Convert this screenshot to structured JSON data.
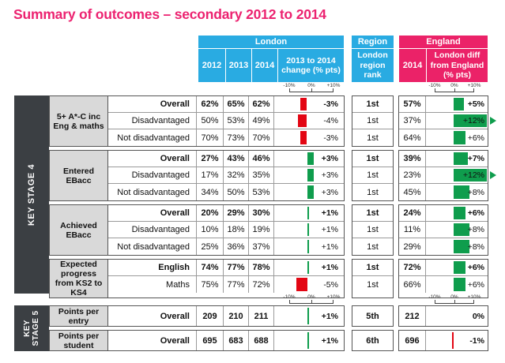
{
  "title": "Summary of outcomes – secondary 2012 to 2014",
  "colors": {
    "header_blue": "#29ABE2",
    "header_pink": "#EB2268",
    "increase_green": "#0F9D4D",
    "decrease_red": "#E30613",
    "sidebar_dark": "#3B3F43",
    "category_bg": "#D9D9D9"
  },
  "chart_data": {
    "type": "table",
    "title": "Summary of outcomes – secondary 2012 to 2014",
    "header": {
      "london": {
        "title": "London",
        "year_cols": [
          "2012",
          "2013",
          "2014"
        ],
        "change_col": "2013 to 2014 change (% pts)"
      },
      "region": {
        "title": "Region",
        "sub": "London region rank"
      },
      "england": {
        "title": "England",
        "year_col": "2014",
        "diff_col": "London diff from England (% pts)"
      }
    },
    "axis_ticks": [
      "-10%",
      "0%",
      "+10%"
    ],
    "axis_range_pct": [
      -10,
      10
    ],
    "sections": [
      {
        "sidebar": "KEY STAGE 4",
        "groups": [
          {
            "category": "5+ A*-C inc Eng & maths",
            "rows": [
              {
                "label": "Overall",
                "bold": true,
                "y2012": "62%",
                "y2013": "65%",
                "y2014": "62%",
                "change": -3,
                "change_label": "-3%",
                "rank": "1st",
                "england_2014": "57%",
                "diff": 5,
                "diff_label": "+5%",
                "diff_overflow": false
              },
              {
                "label": "Disadvantaged",
                "bold": false,
                "y2012": "50%",
                "y2013": "53%",
                "y2014": "49%",
                "change": -4,
                "change_label": "-4%",
                "rank": "1st",
                "england_2014": "37%",
                "diff": 12,
                "diff_label": "+12%",
                "diff_overflow": true
              },
              {
                "label": "Not disadvantaged",
                "bold": false,
                "y2012": "70%",
                "y2013": "73%",
                "y2014": "70%",
                "change": -3,
                "change_label": "-3%",
                "rank": "1st",
                "england_2014": "64%",
                "diff": 6,
                "diff_label": "+6%",
                "diff_overflow": false
              }
            ]
          },
          {
            "category": "Entered EBacc",
            "rows": [
              {
                "label": "Overall",
                "bold": true,
                "y2012": "27%",
                "y2013": "43%",
                "y2014": "46%",
                "change": 3,
                "change_label": "+3%",
                "rank": "1st",
                "england_2014": "39%",
                "diff": 7,
                "diff_label": "+7%",
                "diff_overflow": false
              },
              {
                "label": "Disadvantaged",
                "bold": false,
                "y2012": "17%",
                "y2013": "32%",
                "y2014": "35%",
                "change": 3,
                "change_label": "+3%",
                "rank": "1st",
                "england_2014": "23%",
                "diff": 12,
                "diff_label": "+12%",
                "diff_overflow": true
              },
              {
                "label": "Not disadvantaged",
                "bold": false,
                "y2012": "34%",
                "y2013": "50%",
                "y2014": "53%",
                "change": 3,
                "change_label": "+3%",
                "rank": "1st",
                "england_2014": "45%",
                "diff": 8,
                "diff_label": "+8%",
                "diff_overflow": false
              }
            ]
          },
          {
            "category": "Achieved EBacc",
            "rows": [
              {
                "label": "Overall",
                "bold": true,
                "y2012": "20%",
                "y2013": "29%",
                "y2014": "30%",
                "change": 1,
                "change_label": "+1%",
                "rank": "1st",
                "england_2014": "24%",
                "diff": 6,
                "diff_label": "+6%",
                "diff_overflow": false
              },
              {
                "label": "Disadvantaged",
                "bold": false,
                "y2012": "10%",
                "y2013": "18%",
                "y2014": "19%",
                "change": 1,
                "change_label": "+1%",
                "rank": "1st",
                "england_2014": "11%",
                "diff": 8,
                "diff_label": "+8%",
                "diff_overflow": false
              },
              {
                "label": "Not disadvantaged",
                "bold": false,
                "y2012": "25%",
                "y2013": "36%",
                "y2014": "37%",
                "change": 1,
                "change_label": "+1%",
                "rank": "1st",
                "england_2014": "29%",
                "diff": 8,
                "diff_label": "+8%",
                "diff_overflow": false
              }
            ]
          },
          {
            "category": "Expected progress from KS2 to KS4",
            "rows": [
              {
                "label": "English",
                "bold": true,
                "y2012": "74%",
                "y2013": "77%",
                "y2014": "78%",
                "change": 1,
                "change_label": "+1%",
                "rank": "1st",
                "england_2014": "72%",
                "diff": 6,
                "diff_label": "+6%",
                "diff_overflow": false
              },
              {
                "label": "Maths",
                "bold": false,
                "y2012": "75%",
                "y2013": "77%",
                "y2014": "72%",
                "change": -5,
                "change_label": "-5%",
                "rank": "1st",
                "england_2014": "66%",
                "diff": 6,
                "diff_label": "+6%",
                "diff_overflow": false
              }
            ]
          }
        ]
      },
      {
        "sidebar": "KEY STAGE 5",
        "groups": [
          {
            "category": "Points per entry",
            "rows": [
              {
                "label": "Overall",
                "bold": true,
                "y2012": "209",
                "y2013": "210",
                "y2014": "211",
                "change": 1,
                "change_label": "+1%",
                "rank": "5th",
                "england_2014": "212",
                "diff": 0,
                "diff_label": "0%",
                "diff_overflow": false
              }
            ]
          },
          {
            "category": "Points per student",
            "rows": [
              {
                "label": "Overall",
                "bold": true,
                "y2012": "695",
                "y2013": "683",
                "y2014": "688",
                "change": 1,
                "change_label": "+1%",
                "rank": "6th",
                "england_2014": "696",
                "diff": -1,
                "diff_label": "-1%",
                "diff_overflow": false
              }
            ]
          }
        ]
      }
    ]
  }
}
